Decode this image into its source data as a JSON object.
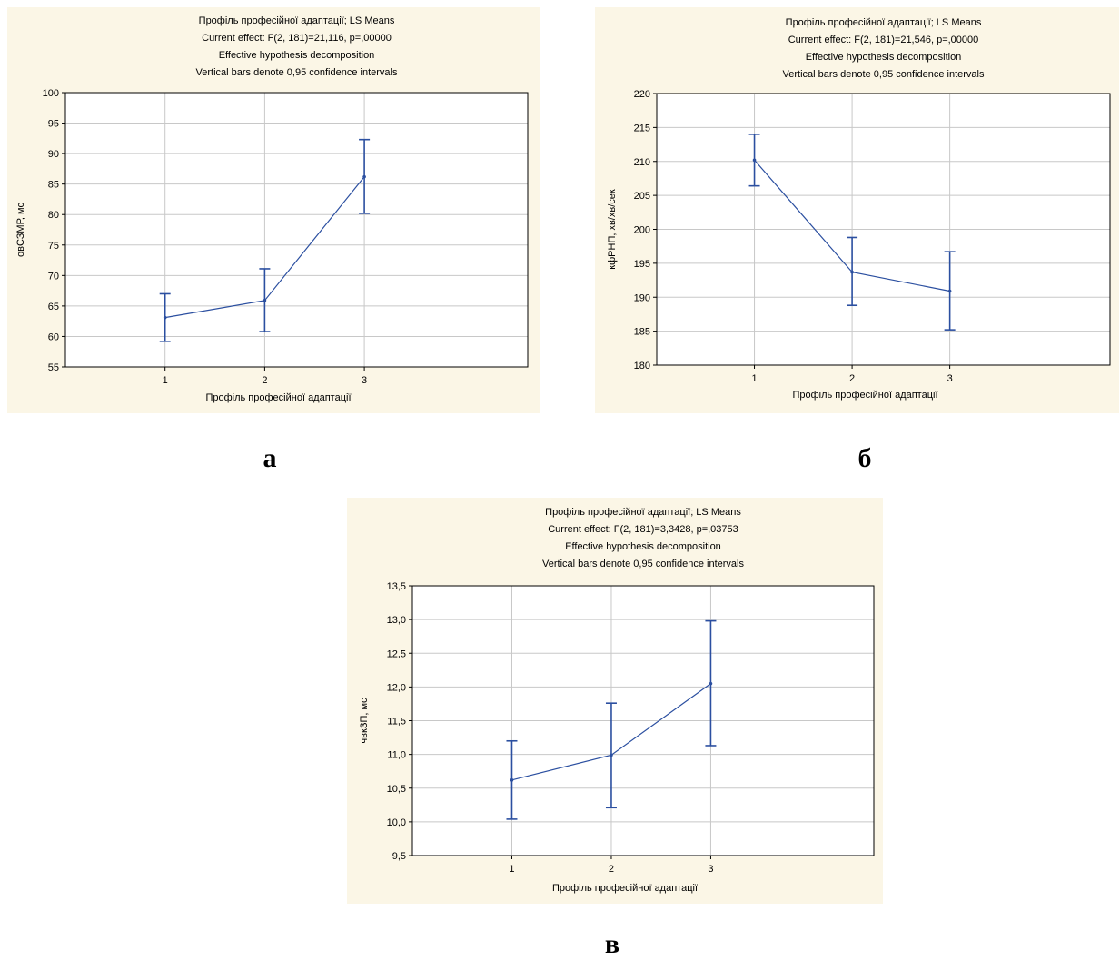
{
  "chart_data": [
    {
      "type": "line",
      "title_lines": [
        "Профіль професійної адаптації; LS Means",
        "Current effect: F(2, 181)=21,116, p=,00000",
        "Effective hypothesis decomposition",
        "Vertical bars denote 0,95 confidence intervals"
      ],
      "xlabel": "Профіль професійної адаптації",
      "ylabel": "овСЗМР, мс",
      "categories": [
        "1",
        "2",
        "3"
      ],
      "series": [
        {
          "values": [
            63.1,
            65.9,
            86.2
          ],
          "ci_low": [
            59.2,
            60.8,
            80.2
          ],
          "ci_high": [
            67.0,
            71.1,
            92.3
          ]
        }
      ],
      "ylim": [
        55,
        100
      ],
      "yticks": [
        55,
        60,
        65,
        70,
        75,
        80,
        85,
        90,
        95,
        100
      ],
      "ytick_labels": [
        "55",
        "60",
        "65",
        "70",
        "75",
        "80",
        "85",
        "90",
        "95",
        "100"
      ],
      "grid": true,
      "color": "#2b4fa0"
    },
    {
      "type": "line",
      "title_lines": [
        "Профіль професійної адаптації; LS Means",
        "Current effect: F(2, 181)=21,546, p=,00000",
        "Effective hypothesis decomposition",
        "Vertical bars denote 0,95 confidence intervals"
      ],
      "xlabel": "Профіль професійної адаптації",
      "ylabel": "кфРНП, хв/хв/сек",
      "categories": [
        "1",
        "2",
        "3"
      ],
      "series": [
        {
          "values": [
            210.2,
            193.7,
            190.9
          ],
          "ci_low": [
            206.4,
            188.8,
            185.2
          ],
          "ci_high": [
            214.0,
            198.8,
            196.7
          ]
        }
      ],
      "ylim": [
        180,
        220
      ],
      "yticks": [
        180,
        185,
        190,
        195,
        200,
        205,
        210,
        215,
        220
      ],
      "ytick_labels": [
        "180",
        "185",
        "190",
        "195",
        "200",
        "205",
        "210",
        "215",
        "220"
      ],
      "grid": true,
      "color": "#2b4fa0"
    },
    {
      "type": "line",
      "title_lines": [
        "Профіль професійної адаптації; LS Means",
        "Current effect: F(2, 181)=3,3428, p=,03753",
        "Effective hypothesis decomposition",
        "Vertical bars denote 0,95 confidence intervals"
      ],
      "xlabel": "Профіль професійної адаптації",
      "ylabel": "чвкЗП, мс",
      "categories": [
        "1",
        "2",
        "3"
      ],
      "series": [
        {
          "values": [
            10.62,
            10.99,
            12.05
          ],
          "ci_low": [
            10.04,
            10.21,
            11.13
          ],
          "ci_high": [
            11.2,
            11.76,
            12.98
          ]
        }
      ],
      "ylim": [
        9.5,
        13.5
      ],
      "yticks": [
        9.5,
        10.0,
        10.5,
        11.0,
        11.5,
        12.0,
        12.5,
        13.0,
        13.5
      ],
      "ytick_labels": [
        "9,5",
        "10,0",
        "10,5",
        "11,0",
        "11,5",
        "12,0",
        "12,5",
        "13,0",
        "13,5"
      ],
      "grid": true,
      "color": "#2b4fa0"
    }
  ],
  "labels": {
    "a": "а",
    "b": "б",
    "c": "в"
  }
}
